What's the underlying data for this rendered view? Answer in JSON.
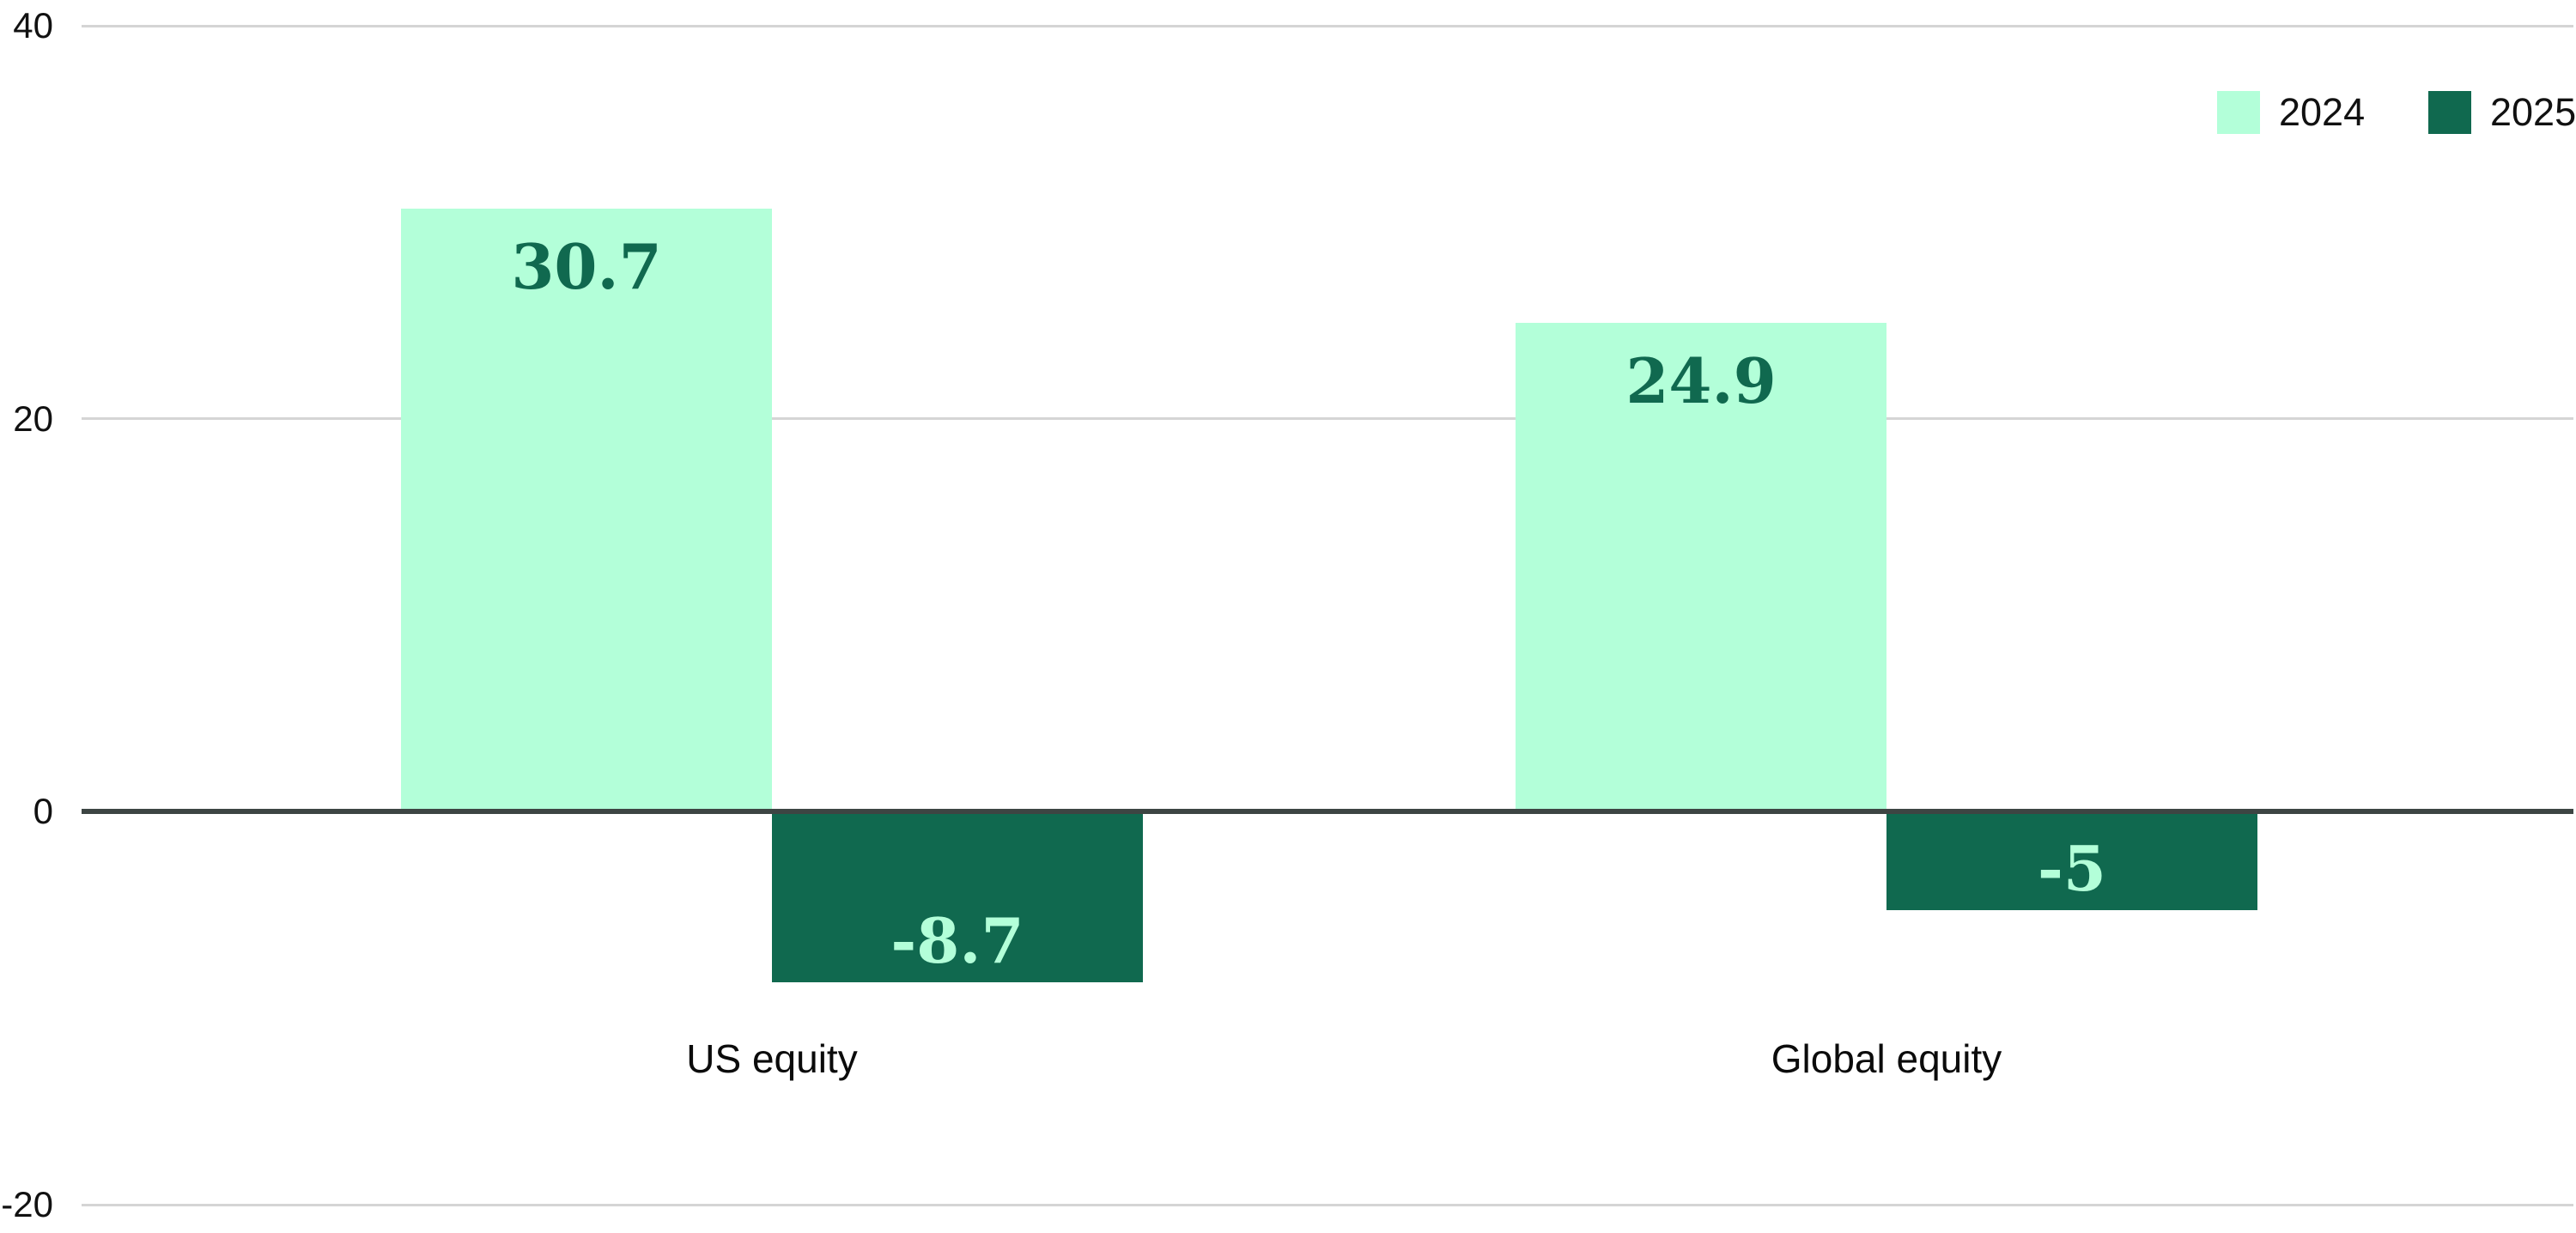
{
  "chart_data": {
    "type": "bar",
    "categories": [
      "US equity",
      "Global equity"
    ],
    "series": [
      {
        "name": "2024",
        "color": "#b3ffd9",
        "label_color": "#10694f",
        "values": [
          30.7,
          24.9
        ],
        "labels": [
          "30.7",
          "24.9"
        ]
      },
      {
        "name": "2025",
        "color": "#10694f",
        "label_color": "#b3ffd9",
        "values": [
          -8.7,
          -5
        ],
        "labels": [
          "-8.7",
          "-5"
        ]
      }
    ],
    "yticks": [
      40,
      20,
      0,
      -20
    ],
    "ytick_labels": [
      "40",
      "20",
      "0",
      "-20"
    ],
    "ylim": [
      -20,
      40
    ],
    "grid": "horizontal",
    "grid_color": "#d5d5d5",
    "zero_line_color": "#3d4543",
    "axis_text_color": "#111111",
    "legend_position": "top-right",
    "title": "",
    "xlabel": "",
    "ylabel": ""
  },
  "legend": {
    "items": [
      {
        "label": "2024",
        "color": "#b3ffd9"
      },
      {
        "label": "2025",
        "color": "#10694f"
      }
    ]
  }
}
